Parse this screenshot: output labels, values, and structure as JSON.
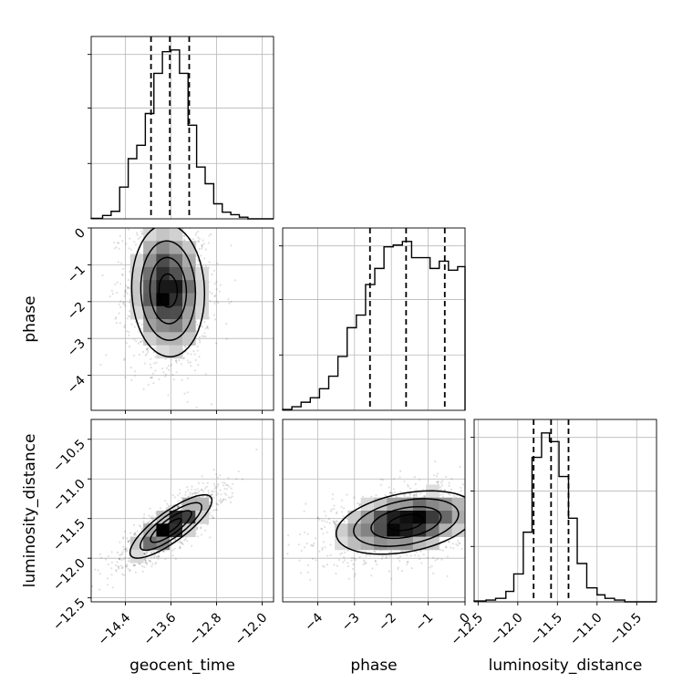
{
  "chart_data": {
    "type": "corner",
    "parameters": [
      "geocent_time",
      "phase",
      "luminosity_distance"
    ],
    "grid": true,
    "marginals": [
      {
        "parameter": "geocent_time",
        "range": [
          -15.0,
          -11.8
        ],
        "quantiles": [
          -13.95,
          -13.62,
          -13.28
        ],
        "bins": [
          [
            -15.0,
            -14.8,
            0.003
          ],
          [
            -14.8,
            -14.65,
            0.02
          ],
          [
            -14.65,
            -14.5,
            0.045
          ],
          [
            -14.5,
            -14.35,
            0.19
          ],
          [
            -14.35,
            -14.2,
            0.36
          ],
          [
            -14.2,
            -14.05,
            0.44
          ],
          [
            -14.05,
            -13.9,
            0.63
          ],
          [
            -13.9,
            -13.75,
            0.87
          ],
          [
            -13.75,
            -13.6,
            1.0
          ],
          [
            -13.6,
            -13.45,
            1.01
          ],
          [
            -13.45,
            -13.3,
            0.87
          ],
          [
            -13.3,
            -13.15,
            0.56
          ],
          [
            -13.15,
            -13.0,
            0.31
          ],
          [
            -13.0,
            -12.85,
            0.21
          ],
          [
            -12.85,
            -12.7,
            0.09
          ],
          [
            -12.7,
            -12.55,
            0.04
          ],
          [
            -12.55,
            -12.4,
            0.025
          ],
          [
            -12.4,
            -12.25,
            0.01
          ],
          [
            -12.25,
            -11.8,
            0.0
          ]
        ],
        "ticks": [],
        "tick_labels": []
      },
      {
        "parameter": "phase",
        "range": [
          -4.95,
          0.0
        ],
        "quantiles": [
          -2.58,
          -1.6,
          -0.55
        ],
        "bins": [
          [
            -4.95,
            -4.7,
            0.005
          ],
          [
            -4.7,
            -4.45,
            0.02
          ],
          [
            -4.45,
            -4.2,
            0.045
          ],
          [
            -4.2,
            -3.95,
            0.07
          ],
          [
            -3.95,
            -3.7,
            0.12
          ],
          [
            -3.7,
            -3.45,
            0.19
          ],
          [
            -3.45,
            -3.2,
            0.3
          ],
          [
            -3.2,
            -2.95,
            0.46
          ],
          [
            -2.95,
            -2.7,
            0.53
          ],
          [
            -2.7,
            -2.45,
            0.7
          ],
          [
            -2.45,
            -2.2,
            0.79
          ],
          [
            -2.2,
            -1.95,
            0.91
          ],
          [
            -1.95,
            -1.7,
            0.92
          ],
          [
            -1.7,
            -1.45,
            0.94
          ],
          [
            -1.45,
            -1.2,
            0.85
          ],
          [
            -1.2,
            -0.95,
            0.85
          ],
          [
            -0.95,
            -0.7,
            0.79
          ],
          [
            -0.7,
            -0.45,
            0.83
          ],
          [
            -0.45,
            -0.2,
            0.78
          ],
          [
            -0.2,
            0.0,
            0.8
          ]
        ],
        "ticks": [],
        "tick_labels": []
      },
      {
        "parameter": "luminosity_distance",
        "range": [
          -12.55,
          -10.25
        ],
        "quantiles": [
          -11.8,
          -11.58,
          -11.36
        ],
        "bins": [
          [
            -12.55,
            -12.4,
            0.005
          ],
          [
            -12.4,
            -12.28,
            0.01
          ],
          [
            -12.28,
            -12.15,
            0.02
          ],
          [
            -12.15,
            -12.05,
            0.06
          ],
          [
            -12.05,
            -11.93,
            0.16
          ],
          [
            -11.93,
            -11.82,
            0.4
          ],
          [
            -11.82,
            -11.7,
            0.83
          ],
          [
            -11.7,
            -11.6,
            0.97
          ],
          [
            -11.6,
            -11.48,
            0.92
          ],
          [
            -11.48,
            -11.36,
            0.72
          ],
          [
            -11.36,
            -11.25,
            0.48
          ],
          [
            -11.25,
            -11.13,
            0.22
          ],
          [
            -11.13,
            -11.0,
            0.08
          ],
          [
            -11.0,
            -10.9,
            0.04
          ],
          [
            -10.9,
            -10.78,
            0.02
          ],
          [
            -10.78,
            -10.65,
            0.01
          ],
          [
            -10.65,
            -10.25,
            0.0
          ]
        ],
        "ticks": [
          -12.5,
          -12.0,
          -11.5,
          -11.0,
          -10.5
        ],
        "tick_labels": [
          "−12.5",
          "−12.0",
          "−11.5",
          "−11.0",
          "−10.5"
        ]
      }
    ],
    "pairs": [
      {
        "x": "geocent_time",
        "y": "phase",
        "x_range": [
          -15.0,
          -11.8
        ],
        "y_range": [
          -4.95,
          0.0
        ],
        "center": [
          -13.65,
          -1.7
        ],
        "sd": [
          0.32,
          0.9
        ],
        "rho": -0.05,
        "y_ticks": [
          -4,
          -3,
          -2,
          -1,
          0
        ],
        "y_tick_labels": [
          "−4",
          "−3",
          "−2",
          "−1",
          "0"
        ],
        "y_label": "phase"
      },
      {
        "x": "geocent_time",
        "y": "luminosity_distance",
        "x_range": [
          -15.0,
          -11.8
        ],
        "y_range": [
          -12.55,
          -10.25
        ],
        "center": [
          -13.6,
          -11.6
        ],
        "sd": [
          0.36,
          0.2
        ],
        "rho": 0.82,
        "x_ticks": [
          -14.4,
          -13.6,
          -12.8,
          -12.0
        ],
        "x_tick_labels": [
          "−14.4",
          "−13.6",
          "−12.8",
          "−12.0"
        ],
        "x_label": "geocent_time",
        "y_ticks": [
          -12.5,
          -12.0,
          -11.5,
          -11.0,
          -10.5
        ],
        "y_tick_labels": [
          "−12.5",
          "−12.0",
          "−11.5",
          "−11.0",
          "−10.5"
        ],
        "y_label": "luminosity_distance"
      },
      {
        "x": "phase",
        "y": "luminosity_distance",
        "x_range": [
          -4.95,
          0.0
        ],
        "y_range": [
          -12.55,
          -10.25
        ],
        "center": [
          -1.6,
          -11.55
        ],
        "sd": [
          0.95,
          0.2
        ],
        "rho": 0.35,
        "x_ticks": [
          -4,
          -3,
          -2,
          -1,
          0
        ],
        "x_tick_labels": [
          "−4",
          "−3",
          "−2",
          "−1",
          "0"
        ],
        "x_label": "phase"
      }
    ],
    "x_labels": [
      "geocent_time",
      "phase",
      "luminosity_distance"
    ],
    "y_labels": [
      "phase",
      "luminosity_distance"
    ]
  }
}
